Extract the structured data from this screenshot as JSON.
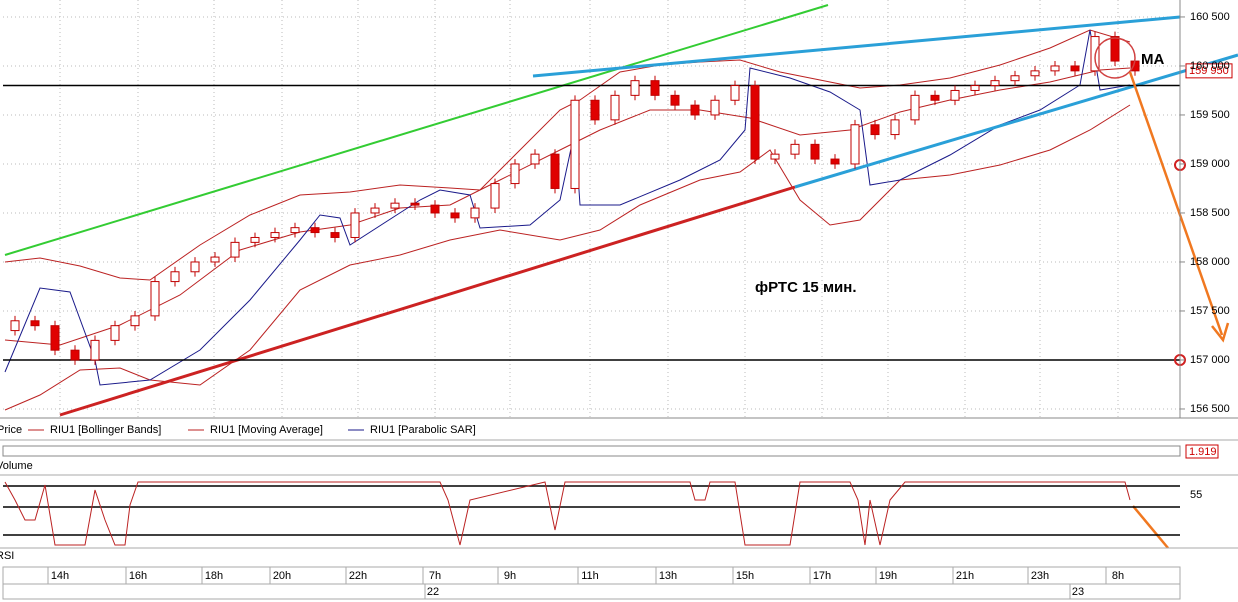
{
  "chart_data": {
    "type": "candlestick",
    "title": "фРТС   15 мин.",
    "annotation": "MA",
    "open": [
      157300,
      157400,
      157350,
      157100,
      157000,
      157200,
      157350,
      157450,
      157800,
      157900,
      158000,
      158050,
      158200,
      158250,
      158300,
      158350,
      158300,
      158250,
      158500,
      158550,
      158600,
      158580,
      158500,
      158450,
      158550,
      158800,
      159000,
      159100,
      158750,
      159650,
      159450,
      159700,
      159850,
      159700,
      159600,
      159500,
      159650,
      159800,
      159050,
      159100,
      159200,
      159050,
      159000,
      159400,
      159300,
      159450,
      159700,
      159650,
      159750,
      159800,
      159850,
      159900,
      159950,
      160000,
      159950,
      160300,
      160050
    ],
    "high": [
      157450,
      157450,
      157400,
      157150,
      157250,
      157400,
      157500,
      157850,
      157950,
      158050,
      158100,
      158250,
      158300,
      158350,
      158400,
      158400,
      158350,
      158550,
      158600,
      158650,
      158650,
      158630,
      158550,
      158600,
      158850,
      159050,
      159150,
      159150,
      159700,
      159700,
      159750,
      159900,
      159900,
      159750,
      159650,
      159700,
      159850,
      159850,
      159150,
      159250,
      159250,
      159100,
      159450,
      159450,
      159500,
      159750,
      159750,
      159800,
      159850,
      159900,
      159950,
      160000,
      160050,
      160050,
      160350,
      160350,
      160100
    ],
    "low": [
      157250,
      157300,
      157050,
      156950,
      156950,
      157150,
      157300,
      157400,
      157750,
      157850,
      157950,
      158000,
      158150,
      158200,
      158250,
      158250,
      158200,
      158200,
      158450,
      158500,
      158530,
      158450,
      158400,
      158400,
      158500,
      158750,
      158950,
      158700,
      158700,
      159400,
      159400,
      159650,
      159650,
      159550,
      159450,
      159450,
      159600,
      159000,
      159000,
      159050,
      159000,
      158950,
      158950,
      159250,
      159250,
      159400,
      159600,
      159600,
      159700,
      159750,
      159800,
      159850,
      159900,
      159900,
      159900,
      160000,
      159900
    ],
    "close": [
      157400,
      157350,
      157100,
      157000,
      157200,
      157350,
      157450,
      157800,
      157900,
      158000,
      158050,
      158200,
      158250,
      158300,
      158350,
      158300,
      158250,
      158500,
      158550,
      158600,
      158580,
      158500,
      158450,
      158550,
      158800,
      159000,
      159100,
      158750,
      159650,
      159450,
      159700,
      159850,
      159700,
      159600,
      159500,
      159650,
      159800,
      159050,
      159100,
      159200,
      159050,
      159000,
      159400,
      159300,
      159450,
      159700,
      159650,
      159750,
      159800,
      159850,
      159900,
      159950,
      160000,
      159950,
      160300,
      160050,
      159950
    ],
    "up_color": "#ffffff",
    "down_color": "#e00000",
    "candle_stroke": "#c00000",
    "levels": [
      159800,
      157000
    ],
    "ylim": [
      156408,
      160673
    ],
    "yticks": [
      {
        "value": 156500,
        "label": "156 500"
      },
      {
        "value": 157000,
        "label": "157 000"
      },
      {
        "value": 157500,
        "label": "157 500"
      },
      {
        "value": 158000,
        "label": "158 000"
      },
      {
        "value": 158500,
        "label": "158 500"
      },
      {
        "value": 159000,
        "label": "159 000"
      },
      {
        "value": 159500,
        "label": "159 500"
      },
      {
        "value": 160000,
        "label": "160 000"
      },
      {
        "value": 160500,
        "label": "160 500"
      }
    ],
    "last_price": {
      "value": 159950,
      "label": "159 950"
    },
    "legend": [
      "Price",
      "RIU1 [Bollinger Bands]",
      "RIU1 [Moving Average]",
      "RIU1 [Parabolic SAR]"
    ],
    "volume_label": "Volume",
    "volume_value": 1.919,
    "rsi_label": "RSI",
    "rsi_tick": 55,
    "time_labels": [
      "14h",
      "16h",
      "18h",
      "20h",
      "22h",
      "7h",
      "9h",
      "11h",
      "13h",
      "15h",
      "17h",
      "19h",
      "21h",
      "23h",
      "8h"
    ],
    "date_labels": [
      "22",
      "23"
    ],
    "grid": true
  }
}
